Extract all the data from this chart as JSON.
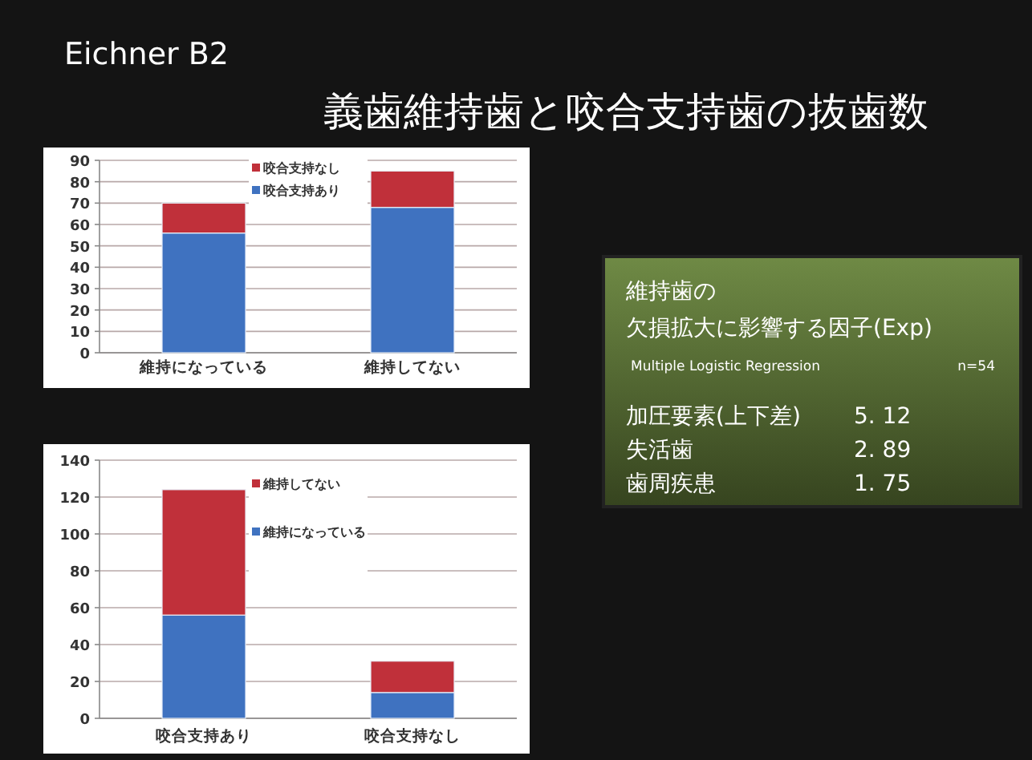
{
  "chart_data": [
    {
      "type": "bar",
      "title": "義歯維持歯と咬合支持歯の抜歯数",
      "subtitle": "Eichner B2",
      "stacked": true,
      "categories": [
        "維持になっている",
        "維持してない"
      ],
      "series": [
        {
          "name": "咬合支持あり",
          "color": "#3f72c0",
          "values": [
            56,
            68
          ]
        },
        {
          "name": "咬合支持なし",
          "color": "#c0303a",
          "values": [
            14,
            17
          ]
        }
      ],
      "ylim": [
        0,
        90
      ],
      "yticks": [
        0,
        10,
        20,
        30,
        40,
        50,
        60,
        70,
        80,
        90
      ],
      "grid": "y",
      "legend": "top"
    },
    {
      "type": "bar",
      "stacked": true,
      "categories": [
        "咬合支持あり",
        "咬合支持なし"
      ],
      "series": [
        {
          "name": "維持になっている",
          "color": "#3f72c0",
          "values": [
            56,
            14
          ]
        },
        {
          "name": "維持してない",
          "color": "#c0303a",
          "values": [
            68,
            17
          ]
        }
      ],
      "ylim": [
        0,
        140
      ],
      "yticks": [
        0,
        20,
        40,
        60,
        80,
        100,
        120,
        140
      ],
      "grid": "y",
      "legend": "top"
    },
    {
      "type": "other",
      "title": "維持歯の",
      "subtitle": "欠損拡大に影響する因子(Exp)",
      "annotations": [
        "Multiple Logistic Regression",
        "n=54",
        "加圧要素(上下差)",
        "5. 12",
        "失活歯",
        "2. 89",
        "歯周疾患",
        "1. 75"
      ]
    }
  ]
}
